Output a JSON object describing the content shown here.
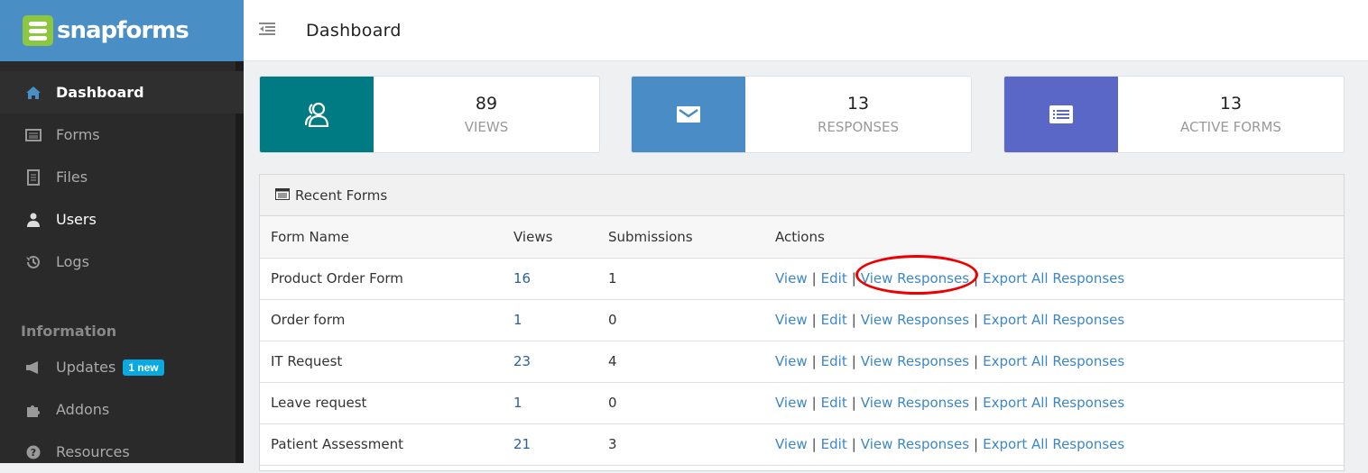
{
  "app": {
    "brand": "snapforms"
  },
  "header": {
    "title": "Dashboard"
  },
  "sidebar": {
    "items": [
      {
        "label": "Dashboard",
        "icon": "home-icon"
      },
      {
        "label": "Forms",
        "icon": "forms-icon"
      },
      {
        "label": "Files",
        "icon": "file-icon"
      },
      {
        "label": "Users",
        "icon": "user-icon"
      },
      {
        "label": "Logs",
        "icon": "history-icon"
      }
    ],
    "section": "Information",
    "info_items": [
      {
        "label": "Updates",
        "icon": "megaphone-icon",
        "badge": "1 new"
      },
      {
        "label": "Addons",
        "icon": "puzzle-icon"
      },
      {
        "label": "Resources",
        "icon": "question-icon"
      }
    ]
  },
  "stats": [
    {
      "value": "89",
      "label": "VIEWS",
      "icon": "users-icon",
      "color": "#017b83"
    },
    {
      "value": "13",
      "label": "RESPONSES",
      "icon": "envelope-icon",
      "color": "#4a8cc5"
    },
    {
      "value": "13",
      "label": "ACTIVE FORMS",
      "icon": "list-icon",
      "color": "#5b67c6"
    }
  ],
  "recent": {
    "title": "Recent Forms",
    "columns": [
      "Form Name",
      "Views",
      "Submissions",
      "Actions"
    ],
    "actions": [
      "View",
      "Edit",
      "View Responses",
      "Export All Responses"
    ],
    "rows": [
      {
        "name": "Product Order Form",
        "views": "16",
        "submissions": "1"
      },
      {
        "name": "Order form",
        "views": "1",
        "submissions": "0"
      },
      {
        "name": "IT Request",
        "views": "23",
        "submissions": "4"
      },
      {
        "name": "Leave request",
        "views": "1",
        "submissions": "0"
      },
      {
        "name": "Patient Assessment",
        "views": "21",
        "submissions": "3"
      }
    ]
  },
  "highlight_color": "#e00000"
}
